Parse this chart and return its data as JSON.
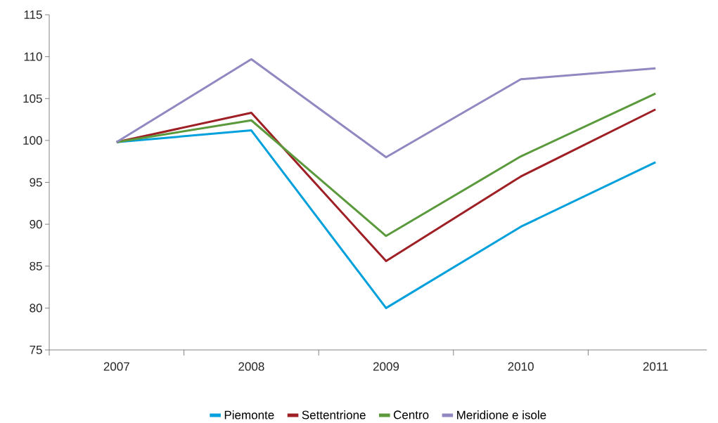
{
  "chart_data": {
    "type": "line",
    "categories": [
      "2007",
      "2008",
      "2009",
      "2010",
      "2011"
    ],
    "series": [
      {
        "name": "Piemonte",
        "color": "#00a0dc",
        "values": [
          99.8,
          101.2,
          80.0,
          89.7,
          97.4
        ]
      },
      {
        "name": "Settentrione",
        "color": "#9e1f24",
        "values": [
          99.8,
          103.3,
          85.6,
          95.7,
          103.7
        ]
      },
      {
        "name": "Centro",
        "color": "#5b9a3c",
        "values": [
          99.8,
          102.4,
          88.6,
          98.1,
          105.6
        ]
      },
      {
        "name": "Meridione e isole",
        "color": "#9088c0",
        "values": [
          99.8,
          109.7,
          98.0,
          107.3,
          108.6
        ]
      }
    ],
    "ylim": [
      75,
      115
    ],
    "yticks": [
      75,
      80,
      85,
      90,
      95,
      100,
      105,
      110,
      115
    ],
    "legend": "bottom",
    "marker": "none"
  }
}
